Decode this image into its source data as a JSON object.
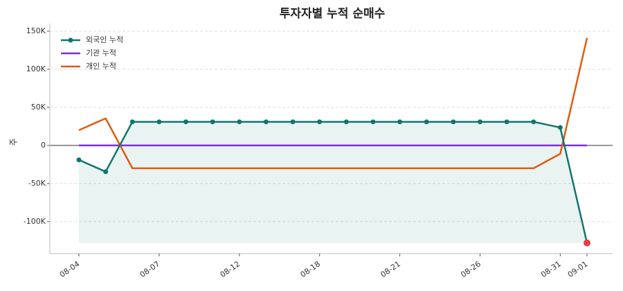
{
  "chart_data": {
    "type": "line",
    "title": "투자자별 누적 순매수",
    "y_label": "주",
    "categories": [
      "08-04",
      null,
      null,
      "08-07",
      null,
      null,
      "08-12",
      null,
      null,
      "08-18",
      null,
      null,
      "08-21",
      null,
      null,
      "08-26",
      null,
      null,
      "08-31",
      "09-01"
    ],
    "series": [
      {
        "name": "외국인 누적",
        "color": "#0f766e",
        "values": [
          -19000,
          -34500,
          31000,
          31000,
          31000,
          31000,
          31000,
          31000,
          31000,
          31000,
          31000,
          31000,
          31000,
          31000,
          31000,
          31000,
          31000,
          31000,
          23500,
          -128000
        ]
      },
      {
        "name": "기관 누적",
        "color": "#7e2fd6",
        "values": [
          0,
          0,
          0,
          0,
          0,
          0,
          0,
          0,
          0,
          0,
          0,
          0,
          0,
          0,
          0,
          0,
          0,
          0,
          0,
          0
        ]
      },
      {
        "name": "개인 누적",
        "color": "#e05a0f",
        "values": [
          20000,
          35500,
          -30000,
          -30000,
          -30000,
          -30000,
          -30000,
          -30000,
          -30000,
          -30000,
          -30000,
          -30000,
          -30000,
          -30000,
          -30000,
          -30000,
          -30000,
          -30000,
          -11000,
          141000
        ]
      }
    ],
    "highlight_color": "#e53e3e",
    "ylim": [
      -142000,
      160000
    ],
    "yticks": [
      {
        "value": -100000,
        "label": "-100K"
      },
      {
        "value": -50000,
        "label": "-50K"
      },
      0,
      {
        "value": 50000,
        "label": "50K"
      },
      {
        "value": 100000,
        "label": "100K"
      },
      {
        "value": 150000,
        "label": "150K"
      }
    ],
    "grid": true,
    "legend": "upper left"
  }
}
